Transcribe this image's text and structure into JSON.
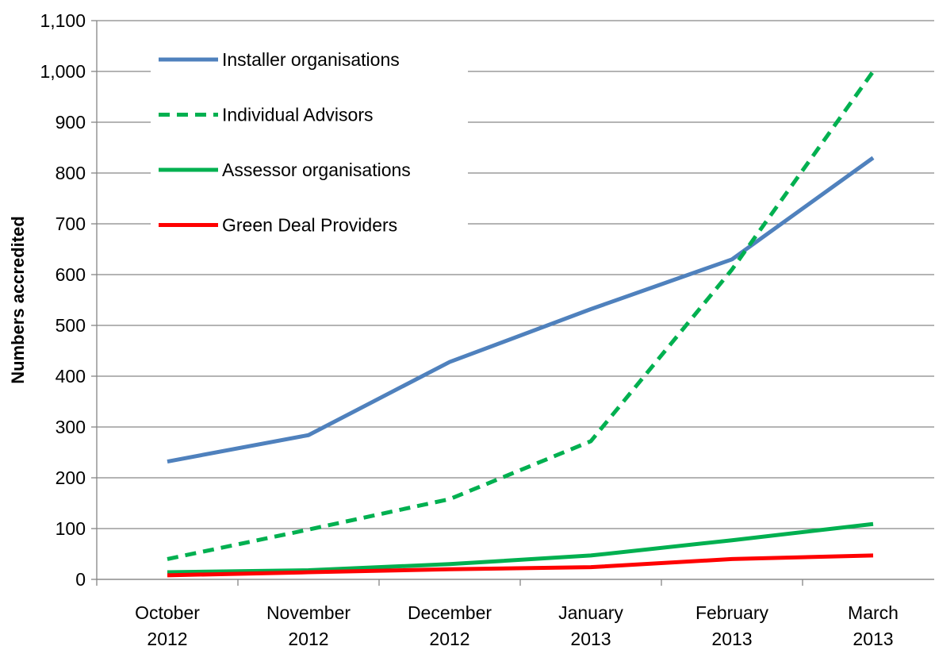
{
  "chart_data": {
    "type": "line",
    "y_axis_label": "Numbers accredited",
    "categories": [
      "October 2012",
      "November 2012",
      "December 2012",
      "January 2013",
      "February 2013",
      "March 2013"
    ],
    "series": [
      {
        "name": "Installer organisations",
        "color": "#4f81bd",
        "dash": false,
        "values": [
          232,
          284,
          428,
          532,
          630,
          830
        ]
      },
      {
        "name": "Individual Advisors",
        "color": "#00b050",
        "dash": true,
        "values": [
          40,
          98,
          158,
          272,
          610,
          1000
        ]
      },
      {
        "name": "Assessor organisations",
        "color": "#00b050",
        "dash": false,
        "values": [
          14,
          18,
          30,
          47,
          77,
          109
        ]
      },
      {
        "name": "Green Deal Providers",
        "color": "#ff0000",
        "dash": false,
        "values": [
          8,
          14,
          20,
          24,
          40,
          47
        ]
      }
    ],
    "ylim": [
      0,
      1100
    ],
    "yticks": [
      0,
      100,
      200,
      300,
      400,
      500,
      600,
      700,
      800,
      900,
      {
        "value": 1000,
        "label": "1,000"
      },
      {
        "value": 1100,
        "label": "1,100"
      }
    ],
    "grid": true,
    "legend": "upper left"
  }
}
